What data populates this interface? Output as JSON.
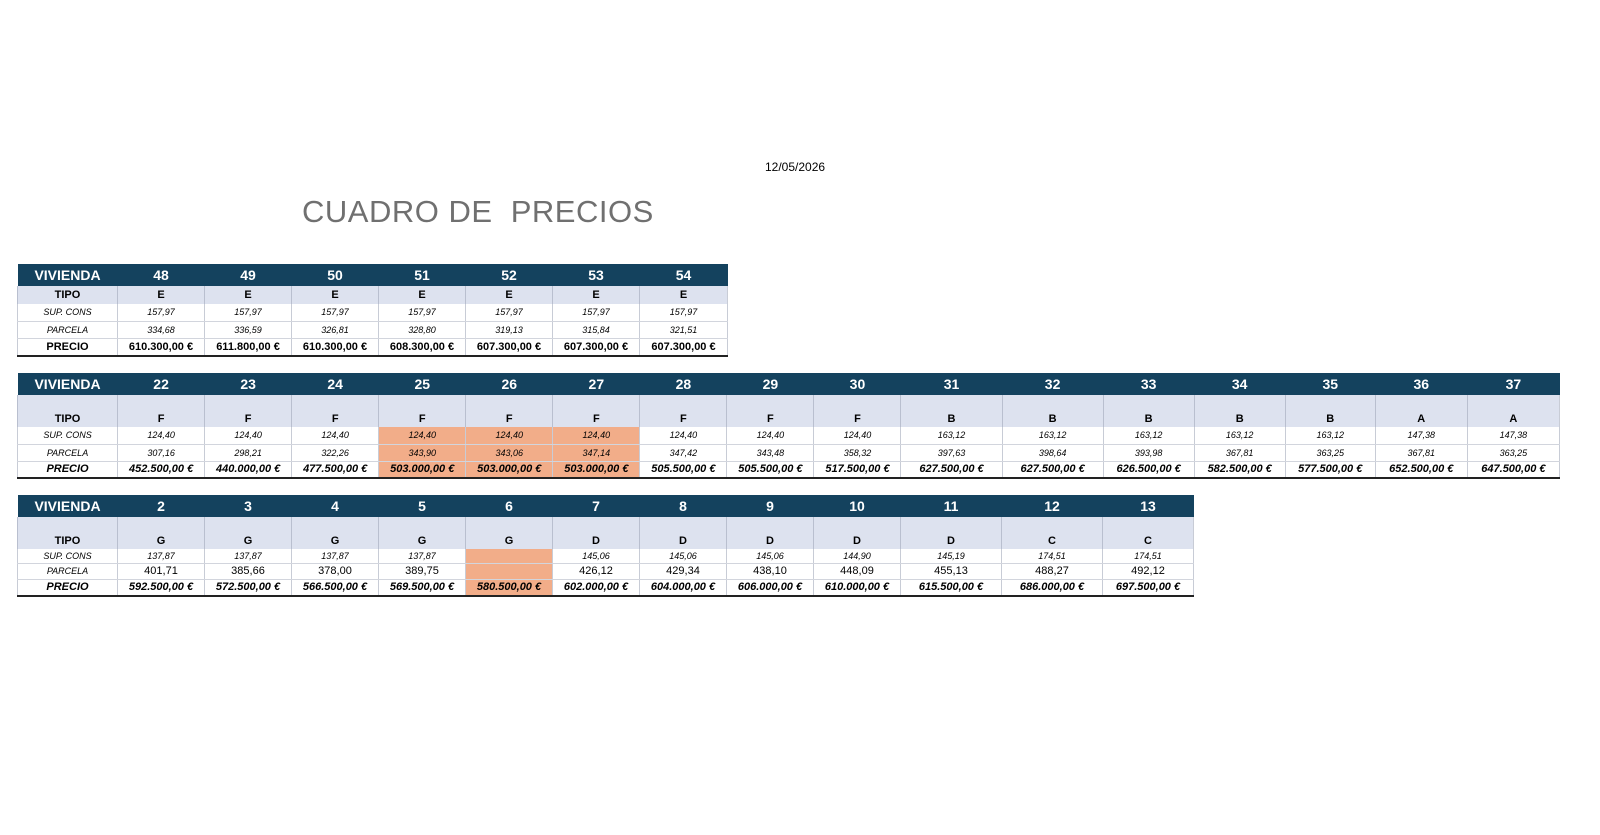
{
  "date": "12/05/2026",
  "title": "CUADRO DE  PRECIOS",
  "labels": {
    "vivienda": "VIVIENDA",
    "tipo": "TIPO",
    "sup_cons": "SUP. CONS",
    "parcela": "PARCELA",
    "precio": "PRECIO"
  },
  "highlight_color": "#f2ad89",
  "header_color": "#14425e",
  "tables": [
    {
      "vivienda": [
        "48",
        "49",
        "50",
        "51",
        "52",
        "53",
        "54"
      ],
      "tipo": [
        "E",
        "E",
        "E",
        "E",
        "E",
        "E",
        "E"
      ],
      "sup_cons": [
        "157,97",
        "157,97",
        "157,97",
        "157,97",
        "157,97",
        "157,97",
        "157,97"
      ],
      "parcela": [
        "334,68",
        "336,59",
        "326,81",
        "328,80",
        "319,13",
        "315,84",
        "321,51"
      ],
      "precio": [
        "610.300,00 €",
        "611.800,00 €",
        "610.300,00 €",
        "608.300,00 €",
        "607.300,00 €",
        "607.300,00 €",
        "607.300,00 €"
      ]
    },
    {
      "vivienda": [
        "22",
        "23",
        "24",
        "25",
        "26",
        "27",
        "28",
        "29",
        "30",
        "31",
        "32",
        "33",
        "34",
        "35",
        "36",
        "37"
      ],
      "tipo": [
        "F",
        "F",
        "F",
        "F",
        "F",
        "F",
        "F",
        "F",
        "F",
        "B",
        "B",
        "B",
        "B",
        "B",
        "A",
        "A"
      ],
      "sup_cons": [
        "124,40",
        "124,40",
        "124,40",
        "124,40",
        "124,40",
        "124,40",
        "124,40",
        "124,40",
        "124,40",
        "163,12",
        "163,12",
        "163,12",
        "163,12",
        "163,12",
        "147,38",
        "147,38"
      ],
      "parcela": [
        "307,16",
        "298,21",
        "322,26",
        "343,90",
        "343,06",
        "347,14",
        "347,42",
        "343,48",
        "358,32",
        "397,63",
        "398,64",
        "393,98",
        "367,81",
        "363,25",
        "367,81",
        "363,25"
      ],
      "precio": [
        "452.500,00 €",
        "440.000,00 €",
        "477.500,00 €",
        "503.000,00 €",
        "503.000,00 €",
        "503.000,00 €",
        "505.500,00 €",
        "505.500,00 €",
        "517.500,00 €",
        "627.500,00 €",
        "627.500,00 €",
        "626.500,00 €",
        "582.500,00 €",
        "577.500,00 €",
        "652.500,00 €",
        "647.500,00 €"
      ]
    },
    {
      "vivienda": [
        "2",
        "3",
        "4",
        "5",
        "6",
        "7",
        "8",
        "9",
        "10",
        "11",
        "12",
        "13"
      ],
      "tipo": [
        "G",
        "G",
        "G",
        "G",
        "G",
        "D",
        "D",
        "D",
        "D",
        "D",
        "C",
        "C"
      ],
      "sup_cons": [
        "137,87",
        "137,87",
        "137,87",
        "137,87",
        "",
        "145,06",
        "145,06",
        "145,06",
        "144,90",
        "145,19",
        "174,51",
        "174,51"
      ],
      "parcela": [
        "401,71",
        "385,66",
        "378,00",
        "389,75",
        "",
        "426,12",
        "429,34",
        "438,10",
        "448,09",
        "455,13",
        "488,27",
        "492,12"
      ],
      "precio": [
        "592.500,00 €",
        "572.500,00 €",
        "566.500,00 €",
        "569.500,00 €",
        "580.500,00 €",
        "602.000,00 €",
        "604.000,00 €",
        "606.000,00 €",
        "610.000,00 €",
        "615.500,00 €",
        "686.000,00 €",
        "697.500,00 €"
      ]
    }
  ]
}
